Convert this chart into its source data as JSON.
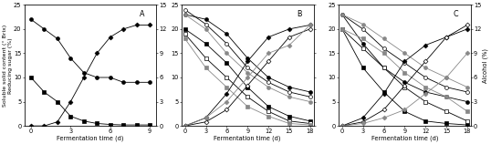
{
  "panel_A": {
    "label": "A",
    "x_max": 9,
    "x_ticks": [
      0,
      3,
      6,
      9
    ],
    "soluble_black_circle": {
      "x": [
        0,
        1,
        2,
        3,
        4,
        5,
        6,
        7,
        8,
        9
      ],
      "y": [
        22,
        20,
        18,
        14,
        11,
        10,
        10,
        9,
        9,
        9
      ]
    },
    "reducing_black_square": {
      "x": [
        0,
        1,
        2,
        3,
        4,
        5,
        6,
        7,
        8,
        9
      ],
      "y": [
        10,
        7,
        5,
        2,
        1,
        0.5,
        0.3,
        0.2,
        0.2,
        0.2
      ]
    },
    "alcohol_black_diamond": {
      "x": [
        0,
        1,
        2,
        3,
        4,
        5,
        6,
        7,
        8,
        9
      ],
      "y": [
        0,
        0,
        0.5,
        3,
        6,
        9,
        11,
        12,
        12.5,
        12.5
      ]
    }
  },
  "panel_B": {
    "label": "B",
    "x_max": 18,
    "x_ticks": [
      0,
      3,
      6,
      9,
      12,
      15,
      18
    ],
    "soluble_black_circle": {
      "x": [
        0,
        3,
        6,
        9,
        12,
        15,
        18
      ],
      "y": [
        23,
        22,
        19,
        14,
        10,
        8,
        7
      ]
    },
    "soluble_white_circle": {
      "x": [
        0,
        3,
        6,
        9,
        12,
        15,
        18
      ],
      "y": [
        24,
        21,
        17,
        12,
        9,
        7,
        6
      ]
    },
    "soluble_gray_circle": {
      "x": [
        0,
        3,
        6,
        9,
        12,
        15,
        18
      ],
      "y": [
        23,
        20,
        15,
        11,
        8,
        6,
        5
      ]
    },
    "reducing_black_square": {
      "x": [
        0,
        3,
        6,
        9,
        12,
        15,
        18
      ],
      "y": [
        20,
        17,
        13,
        8,
        4,
        2,
        1
      ]
    },
    "reducing_white_square": {
      "x": [
        0,
        3,
        6,
        9,
        12,
        15,
        18
      ],
      "y": [
        19,
        14,
        10,
        6,
        3,
        1,
        0.5
      ]
    },
    "reducing_gray_square": {
      "x": [
        0,
        3,
        6,
        9,
        12,
        15,
        18
      ],
      "y": [
        18,
        12,
        8,
        4,
        2,
        0.5,
        0.2
      ]
    },
    "alcohol_black_diamond": {
      "x": [
        0,
        3,
        6,
        9,
        12,
        15,
        18
      ],
      "y": [
        0,
        1,
        4,
        8,
        11,
        12,
        12.5
      ]
    },
    "alcohol_white_diamond": {
      "x": [
        0,
        3,
        6,
        9,
        12,
        15,
        18
      ],
      "y": [
        0,
        0.5,
        2,
        5,
        8,
        11,
        12
      ]
    },
    "alcohol_gray_diamond": {
      "x": [
        0,
        3,
        6,
        9,
        12,
        15,
        18
      ],
      "y": [
        0,
        1,
        3,
        6,
        9,
        10,
        12.5
      ]
    }
  },
  "panel_C": {
    "label": "C",
    "x_max": 18,
    "x_ticks": [
      0,
      3,
      6,
      9,
      12,
      15,
      18
    ],
    "soluble_black_circle": {
      "x": [
        0,
        3,
        6,
        9,
        12,
        15,
        18
      ],
      "y": [
        23,
        17,
        12,
        9,
        7,
        6,
        5
      ]
    },
    "soluble_white_circle": {
      "x": [
        0,
        3,
        6,
        9,
        12,
        15,
        18
      ],
      "y": [
        23,
        20,
        16,
        13,
        10,
        8,
        7
      ]
    },
    "soluble_gray_circle": {
      "x": [
        0,
        3,
        6,
        9,
        12,
        15,
        18
      ],
      "y": [
        23,
        21,
        18,
        15,
        12,
        10,
        8
      ]
    },
    "reducing_black_square": {
      "x": [
        0,
        3,
        6,
        9,
        12,
        15,
        18
      ],
      "y": [
        20,
        12,
        7,
        3,
        1,
        0.5,
        0.2
      ]
    },
    "reducing_white_square": {
      "x": [
        0,
        3,
        6,
        9,
        12,
        15,
        18
      ],
      "y": [
        20,
        16,
        12,
        8,
        5,
        3,
        1
      ]
    },
    "reducing_gray_square": {
      "x": [
        0,
        3,
        6,
        9,
        12,
        15,
        18
      ],
      "y": [
        20,
        18,
        15,
        11,
        8,
        6,
        3
      ]
    },
    "alcohol_black_diamond": {
      "x": [
        0,
        3,
        6,
        9,
        12,
        15,
        18
      ],
      "y": [
        0,
        1,
        4,
        8,
        10,
        11,
        12
      ]
    },
    "alcohol_white_diamond": {
      "x": [
        0,
        3,
        6,
        9,
        12,
        15,
        18
      ],
      "y": [
        0,
        0.5,
        2,
        5,
        8,
        11,
        12.5
      ]
    },
    "alcohol_gray_diamond": {
      "x": [
        0,
        3,
        6,
        9,
        12,
        15,
        18
      ],
      "y": [
        0,
        0.3,
        1,
        2,
        4,
        6,
        9
      ]
    }
  },
  "left_ylim": [
    0,
    25
  ],
  "left_yticks": [
    0,
    5,
    10,
    15,
    20,
    25
  ],
  "right_ylim": [
    0,
    15
  ],
  "right_yticks": [
    0,
    3,
    6,
    9,
    12,
    15
  ],
  "xlabel": "Fermentation time (d)",
  "ylabel_left": "Soluble solid content (° Brix)\nReducing sugar (%)",
  "ylabel_right": "Alcohol (%)",
  "bg_color": "#ffffff",
  "lc_black": "#000000",
  "lc_gray": "#888888",
  "marker_size": 2.8,
  "font_size": 4.8,
  "linewidth": 0.6
}
